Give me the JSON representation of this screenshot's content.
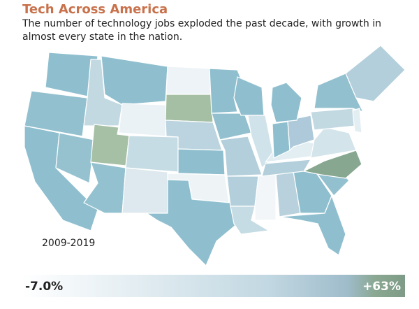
{
  "header": {
    "title": "Tech Across America",
    "subtitle": "The number of technology jobs exploded the past decade, with growth in almost every state in the nation."
  },
  "map": {
    "period": "2009-2019"
  },
  "legend": {
    "min": "-7.0%",
    "max": "+63%"
  }
}
